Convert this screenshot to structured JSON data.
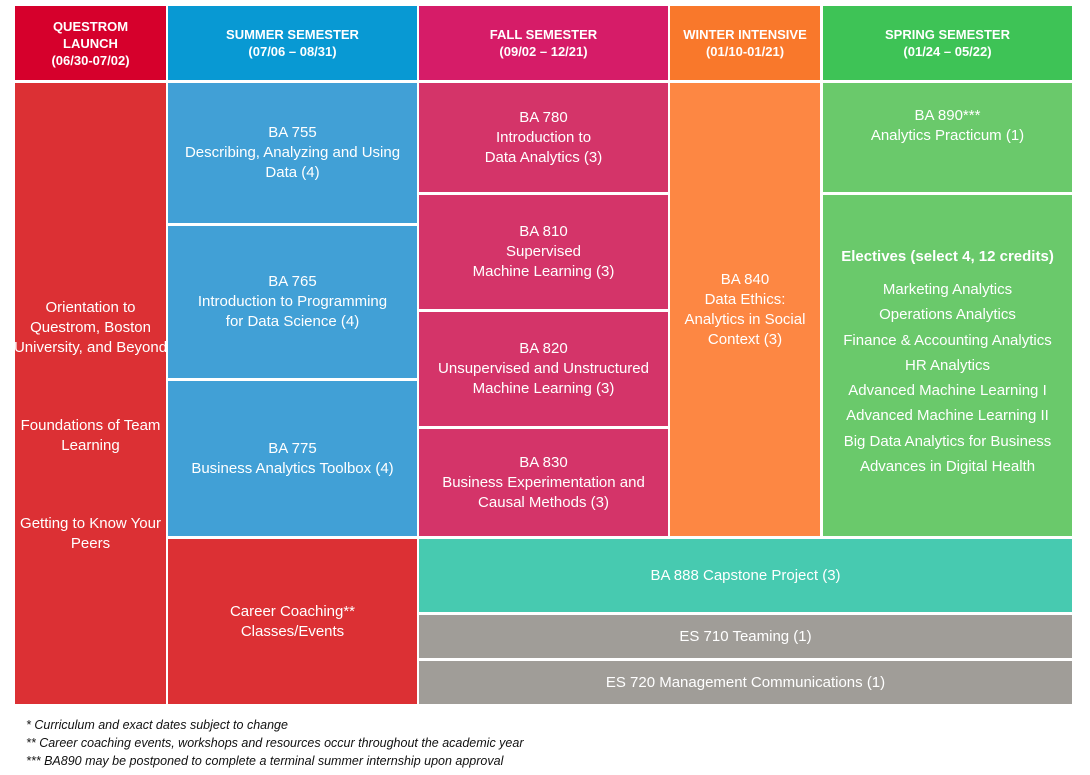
{
  "colors": {
    "launch_header": "#d6002c",
    "launch": "#dc3034",
    "summer_header": "#0899d3",
    "summer": "#41a0d6",
    "fall_header": "#d61c68",
    "fall": "#d43469",
    "winter_header": "#f9782b",
    "winter": "#fd8743",
    "spring_header": "#3ec356",
    "spring": "#6ac96b",
    "capstone": "#47cab0",
    "es": "#a09d98"
  },
  "headers": {
    "launch": [
      "QUESTROM",
      "LAUNCH",
      "(06/30-07/02)"
    ],
    "summer": [
      "SUMMER SEMESTER",
      "(07/06 – 08/31)"
    ],
    "fall": [
      "FALL SEMESTER",
      "(09/02 – 12/21)"
    ],
    "winter": [
      "WINTER INTENSIVE",
      "(01/10-01/21)"
    ],
    "spring": [
      "SPRING SEMESTER",
      "(01/24 – 05/22)"
    ]
  },
  "launch": {
    "orientation": [
      "Orientation to",
      "Questrom, Boston",
      "University, and Beyond"
    ],
    "foundations": [
      "Foundations of Team",
      "Learning"
    ],
    "peers": [
      "Getting to Know Your",
      "Peers"
    ]
  },
  "summer": {
    "ba755": [
      "BA 755",
      "Describing, Analyzing and Using",
      "Data (4)"
    ],
    "ba765": [
      "BA 765",
      "Introduction to Programming",
      "for Data Science (4)"
    ],
    "ba775": [
      "BA 775",
      "Business Analytics Toolbox (4)"
    ],
    "career": [
      "Career Coaching**",
      "Classes/Events"
    ]
  },
  "fall": {
    "ba780": [
      "BA 780",
      "Introduction to",
      "Data Analytics (3)"
    ],
    "ba810": [
      "BA 810",
      "Supervised",
      "Machine Learning (3)"
    ],
    "ba820": [
      "BA 820",
      "Unsupervised and Unstructured",
      "Machine Learning (3)"
    ],
    "ba830": [
      "BA 830",
      "Business Experimentation and",
      "Causal Methods (3)"
    ]
  },
  "winter": {
    "ba840": [
      "BA 840",
      "Data Ethics:",
      "Analytics in Social",
      "Context (3)"
    ]
  },
  "spring": {
    "ba890": [
      "BA 890***",
      "Analytics Practicum (1)"
    ],
    "electives_title": "Electives (select 4, 12 credits)",
    "electives": [
      "Marketing Analytics",
      "Operations Analytics",
      "Finance & Accounting Analytics",
      "HR Analytics",
      "Advanced Machine Learning I",
      "Advanced Machine Learning II",
      "Big Data Analytics for Business",
      "Advances in Digital Health"
    ]
  },
  "capstone": "BA 888 Capstone Project (3)",
  "es710": "ES 710 Teaming (1)",
  "es720": "ES 720 Management Communications (1)",
  "footnotes": [
    "* Curriculum and exact dates subject to change",
    "** Career coaching events, workshops and resources occur throughout the academic year",
    "*** BA890 may be postponed to complete a terminal summer internship upon approval"
  ]
}
